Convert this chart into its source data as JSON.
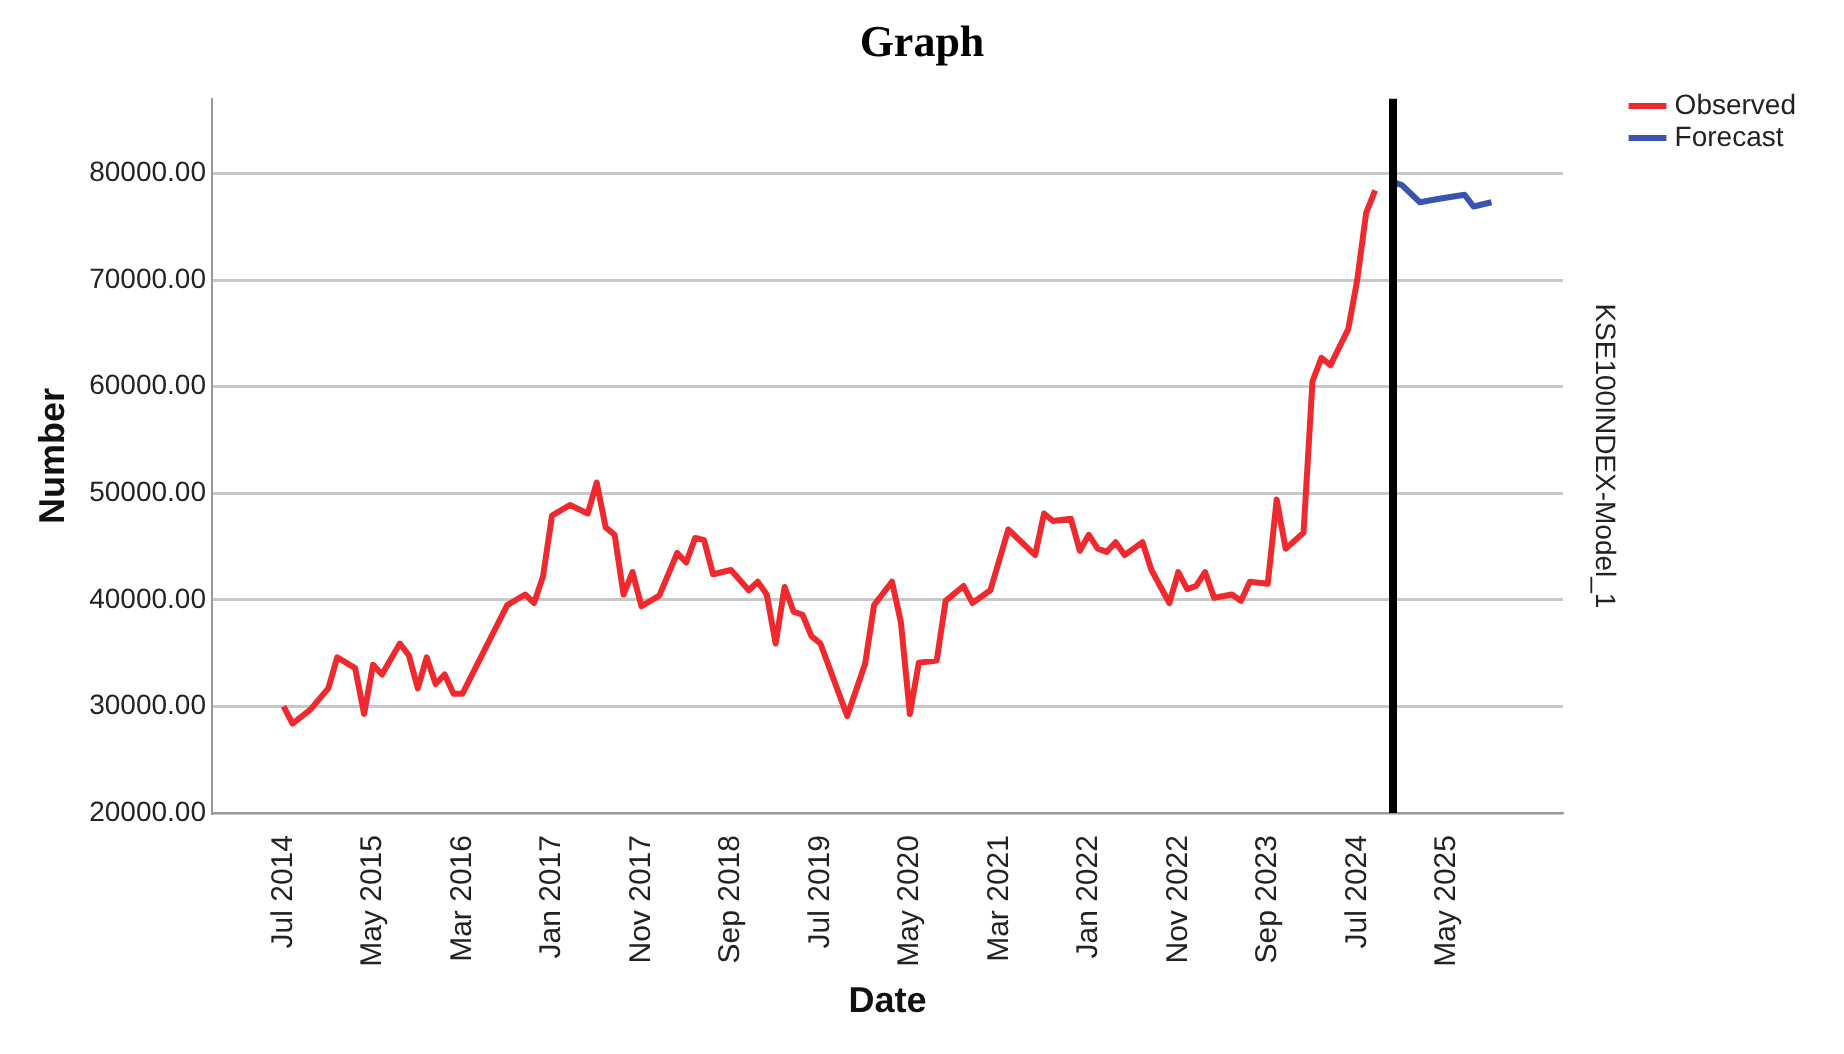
{
  "chart_data": {
    "type": "line",
    "title": "Graph",
    "xlabel": "Date",
    "ylabel": "Number",
    "y2label": "KSE100INDEX-Model_1",
    "series": [
      {
        "name": "Observed",
        "color": "#ee2a2e",
        "x": [
          "2014-07",
          "2014-08",
          "2014-10",
          "2014-12",
          "2015-01",
          "2015-03",
          "2015-04",
          "2015-05",
          "2015-06",
          "2015-08",
          "2015-09",
          "2015-10",
          "2015-11",
          "2015-12",
          "2016-01",
          "2016-02",
          "2016-03",
          "2016-08",
          "2016-10",
          "2016-11",
          "2016-12",
          "2017-01",
          "2017-03",
          "2017-05",
          "2017-06",
          "2017-07",
          "2017-08",
          "2017-09",
          "2017-10",
          "2017-11",
          "2018-01",
          "2018-03",
          "2018-04",
          "2018-05",
          "2018-06",
          "2018-07",
          "2018-09",
          "2018-11",
          "2018-12",
          "2019-01",
          "2019-02",
          "2019-03",
          "2019-04",
          "2019-05",
          "2019-06",
          "2019-07",
          "2019-10",
          "2019-12",
          "2020-01",
          "2020-03",
          "2020-04",
          "2020-05",
          "2020-06",
          "2020-08",
          "2020-09",
          "2020-11",
          "2020-12",
          "2021-02",
          "2021-04",
          "2021-05",
          "2021-07",
          "2021-08",
          "2021-09",
          "2021-11",
          "2021-12",
          "2022-01",
          "2022-02",
          "2022-03",
          "2022-04",
          "2022-05",
          "2022-07",
          "2022-08",
          "2022-10",
          "2022-11",
          "2022-12",
          "2023-01",
          "2023-02",
          "2023-03",
          "2023-05",
          "2023-06",
          "2023-07",
          "2023-09",
          "2023-10",
          "2023-11",
          "2024-01",
          "2024-02",
          "2024-03",
          "2024-04",
          "2024-06",
          "2024-07",
          "2024-08",
          "2024-09"
        ],
        "values": [
          30000,
          28400,
          29700,
          31700,
          34600,
          33600,
          29300,
          33900,
          33000,
          35900,
          34800,
          31700,
          34600,
          32100,
          33000,
          31200,
          31200,
          39500,
          40500,
          39700,
          42200,
          47900,
          48900,
          48100,
          51000,
          46800,
          46100,
          40500,
          42600,
          39400,
          40400,
          44400,
          43500,
          45800,
          45600,
          42400,
          42800,
          40900,
          41700,
          40500,
          35900,
          41200,
          38900,
          38600,
          36600,
          35900,
          29100,
          34000,
          39500,
          41700,
          37900,
          29300,
          34100,
          34300,
          39900,
          41300,
          39700,
          40900,
          46600,
          45800,
          44200,
          48100,
          47400,
          47600,
          44600,
          46100,
          44800,
          44500,
          45400,
          44200,
          45400,
          42800,
          39700,
          42600,
          41000,
          41300,
          42600,
          40200,
          40500,
          39900,
          41700,
          41500,
          49400,
          44800,
          46300,
          60500,
          62700,
          62000,
          65400,
          70000,
          76300,
          78400
        ]
      },
      {
        "name": "Forecast",
        "color": "#3a52b0",
        "x": [
          "2024-11",
          "2024-12",
          "2025-02",
          "2025-04",
          "2025-07",
          "2025-08",
          "2025-10"
        ],
        "values": [
          79200,
          78900,
          77300,
          77600,
          78000,
          76900,
          77300
        ]
      }
    ],
    "xlim": [
      "2013-11",
      "2026-06"
    ],
    "xticks": [
      {
        "value": "2014-07",
        "label": "Jul 2014"
      },
      {
        "value": "2015-05",
        "label": "May 2015"
      },
      {
        "value": "2016-03",
        "label": "Mar 2016"
      },
      {
        "value": "2017-01",
        "label": "Jan 2017"
      },
      {
        "value": "2017-11",
        "label": "Nov 2017"
      },
      {
        "value": "2018-09",
        "label": "Sep 2018"
      },
      {
        "value": "2019-07",
        "label": "Jul 2019"
      },
      {
        "value": "2020-05",
        "label": "May 2020"
      },
      {
        "value": "2021-03",
        "label": "Mar 2021"
      },
      {
        "value": "2022-01",
        "label": "Jan 2022"
      },
      {
        "value": "2022-11",
        "label": "Nov 2022"
      },
      {
        "value": "2023-09",
        "label": "Sep 2023"
      },
      {
        "value": "2024-07",
        "label": "Jul 2024"
      },
      {
        "value": "2025-05",
        "label": "May 2025"
      }
    ],
    "ylim": [
      20000,
      87000
    ],
    "yticks": [
      {
        "value": 20000,
        "label": "20000.00"
      },
      {
        "value": 30000,
        "label": "30000.00"
      },
      {
        "value": 40000,
        "label": "40000.00"
      },
      {
        "value": 50000,
        "label": "50000.00"
      },
      {
        "value": 60000,
        "label": "60000.00"
      },
      {
        "value": 70000,
        "label": "70000.00"
      },
      {
        "value": 80000,
        "label": "80000.00"
      }
    ],
    "ref_lines": [
      {
        "axis": "x",
        "value": "2024-11",
        "color": "#000000"
      }
    ],
    "grid": "y",
    "legend": "top right",
    "marker": "none",
    "line_style": "solid"
  }
}
